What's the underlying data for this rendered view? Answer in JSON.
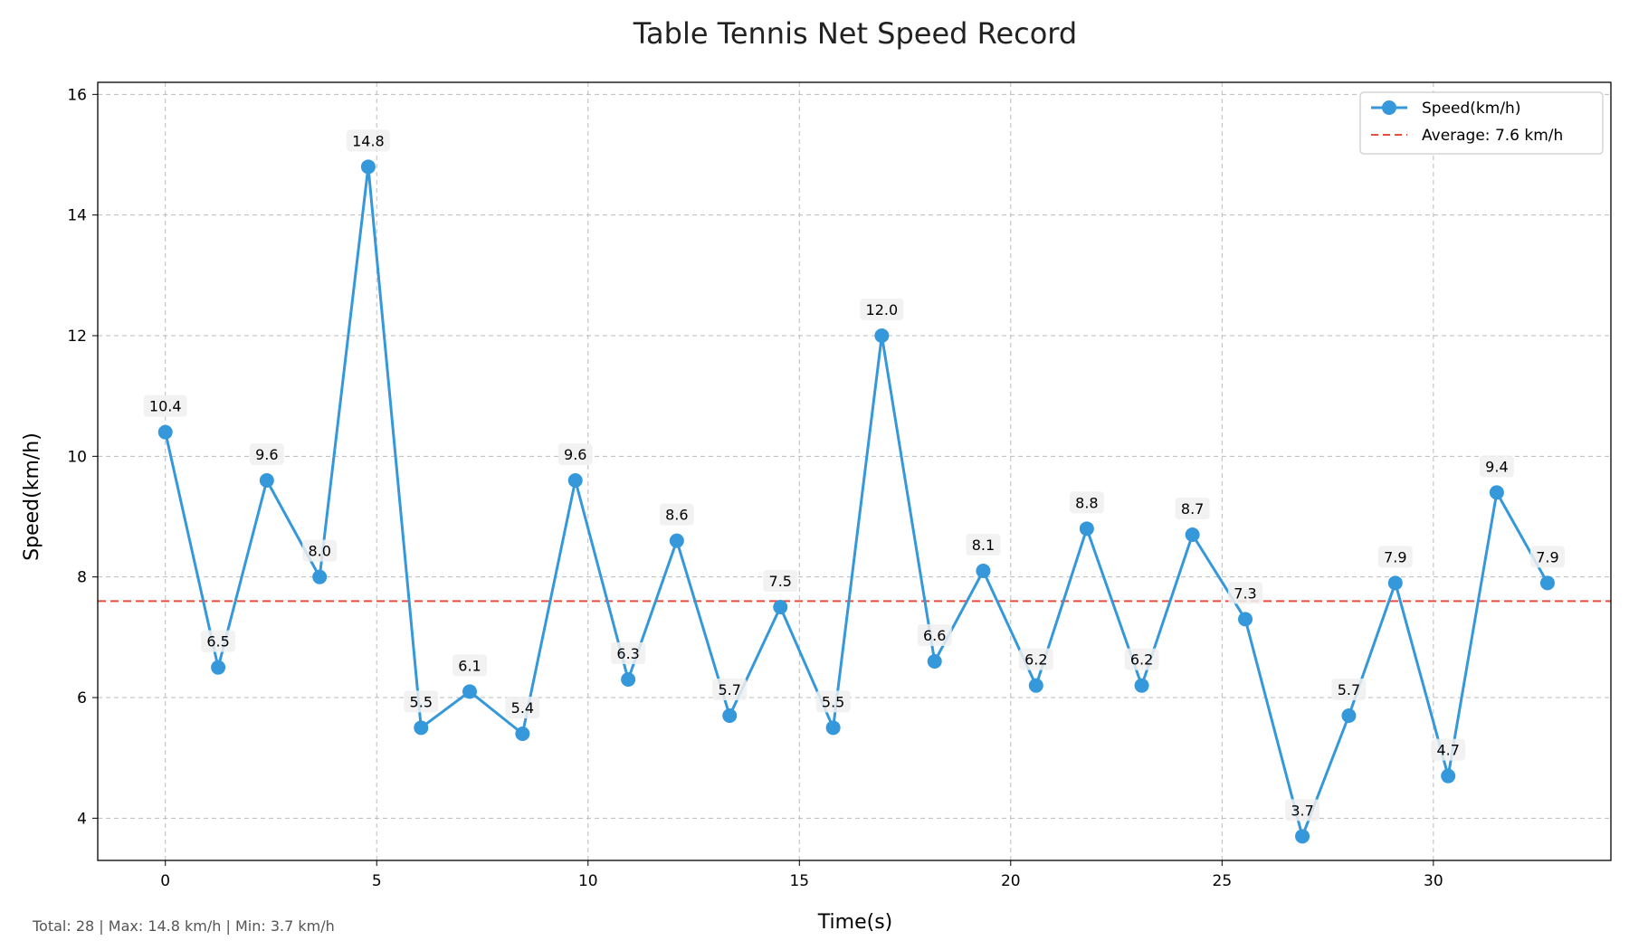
{
  "chart_data": {
    "type": "line",
    "title": "Table Tennis Net Speed Record",
    "xlabel": "Time(s)",
    "ylabel": "Speed(km/h)",
    "xlim": [
      -1.6,
      34.2
    ],
    "ylim": [
      3.3,
      16.2
    ],
    "xticks": [
      0,
      5,
      10,
      15,
      20,
      25,
      30
    ],
    "yticks": [
      4,
      6,
      8,
      10,
      12,
      14,
      16
    ],
    "grid": true,
    "legend_position": "top-right",
    "series": [
      {
        "name": "Speed(km/h)",
        "color": "#3498db",
        "x": [
          0.0,
          1.25,
          2.4,
          3.65,
          4.8,
          6.05,
          7.2,
          8.45,
          9.7,
          10.95,
          12.1,
          13.35,
          14.55,
          15.8,
          16.95,
          18.2,
          19.35,
          20.6,
          21.8,
          23.1,
          24.3,
          25.55,
          26.9,
          28.0,
          29.1,
          30.35,
          31.5,
          32.7
        ],
        "values": [
          10.4,
          6.5,
          9.6,
          8.0,
          14.8,
          5.5,
          6.1,
          5.4,
          9.6,
          6.3,
          8.6,
          5.7,
          7.5,
          5.5,
          12.0,
          6.6,
          8.1,
          6.2,
          8.8,
          6.2,
          8.7,
          7.3,
          3.7,
          5.7,
          7.9,
          4.7,
          9.4,
          7.9
        ],
        "labels": [
          "10.4",
          "6.5",
          "9.6",
          "8.0",
          "14.8",
          "5.5",
          "6.1",
          "5.4",
          "9.6",
          "6.3",
          "8.6",
          "5.7",
          "7.5",
          "5.5",
          "12.0",
          "6.6",
          "8.1",
          "6.2",
          "8.8",
          "6.2",
          "8.7",
          "7.3",
          "3.7",
          "5.7",
          "7.9",
          "4.7",
          "9.4",
          "7.9"
        ]
      }
    ],
    "average": {
      "value": 7.6,
      "label": "Average: 7.6 km/h",
      "color": "#e74c3c"
    }
  },
  "footer": {
    "text": "Total: 28 | Max: 14.8 km/h | Min: 3.7 km/h"
  }
}
